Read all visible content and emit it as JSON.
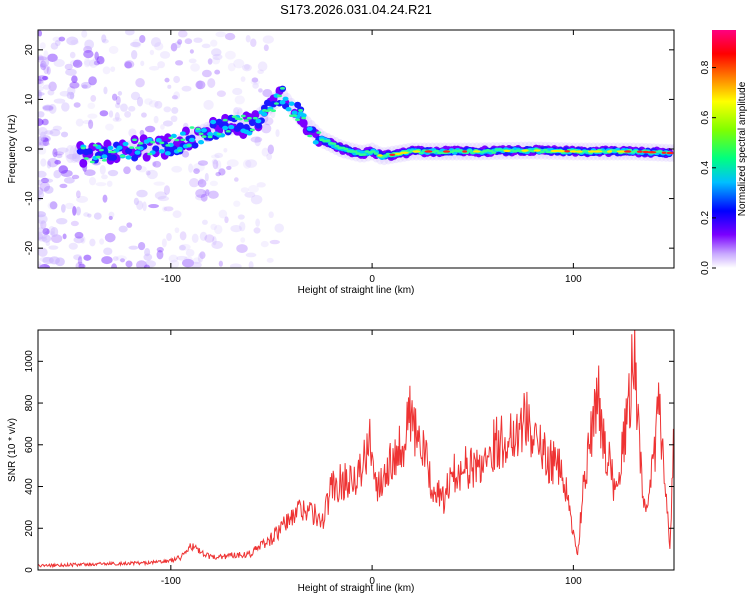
{
  "title": "S173.2026.031.04.24.R21",
  "chart_data": [
    {
      "type": "heatmap",
      "name": "spectrogram",
      "xlabel": "Height of straight line (km)",
      "ylabel": "Frequency (Hz)",
      "xlim": [
        -166,
        150
      ],
      "ylim": [
        -24,
        24
      ],
      "xticks": [
        -100,
        0,
        100
      ],
      "yticks": [
        -20,
        -10,
        0,
        10,
        20
      ],
      "colorbar": {
        "label": "Normalized spectral amplitude",
        "range": [
          0.0,
          0.95
        ],
        "ticks": [
          0.0,
          0.2,
          0.4,
          0.6,
          0.8
        ]
      },
      "ridge": {
        "description_points_x": [
          -140,
          -120,
          -100,
          -80,
          -60,
          -45,
          -35,
          -25,
          -15,
          -5,
          0,
          5,
          20,
          50,
          80,
          100,
          130,
          148
        ],
        "description_points_y": [
          -1,
          0,
          0.5,
          4,
          5,
          11,
          6,
          2,
          0,
          -1,
          -0.5,
          -1.5,
          -0.5,
          -0.5,
          -0.3,
          -0.5,
          -0.5,
          -0.8
        ]
      }
    },
    {
      "type": "line",
      "name": "snr",
      "xlabel": "Height of straight line (km)",
      "ylabel": "SNR (10 * v/v)",
      "xlim": [
        -166,
        150
      ],
      "ylim": [
        0,
        1150
      ],
      "xticks": [
        -100,
        0,
        100
      ],
      "yticks": [
        0,
        200,
        400,
        600,
        800,
        1000
      ],
      "color": "#ee3333",
      "series": [
        {
          "name": "SNR",
          "x": [
            -166,
            -150,
            -130,
            -110,
            -100,
            -95,
            -90,
            -85,
            -80,
            -70,
            -60,
            -55,
            -50,
            -45,
            -40,
            -35,
            -30,
            -25,
            -20,
            -15,
            -10,
            -5,
            -1,
            0,
            2,
            5,
            10,
            15,
            18,
            20,
            22,
            25,
            30,
            35,
            40,
            45,
            50,
            55,
            60,
            65,
            70,
            75,
            78,
            80,
            85,
            90,
            95,
            100,
            102,
            105,
            110,
            112,
            115,
            120,
            125,
            128,
            130,
            132,
            135,
            140,
            142,
            145,
            148,
            150
          ],
          "y": [
            20,
            25,
            30,
            35,
            45,
            60,
            120,
            80,
            60,
            70,
            80,
            120,
            150,
            200,
            250,
            300,
            280,
            220,
            400,
            420,
            450,
            480,
            600,
            620,
            400,
            450,
            550,
            600,
            750,
            700,
            650,
            580,
            400,
            330,
            450,
            500,
            480,
            520,
            600,
            620,
            650,
            720,
            700,
            650,
            550,
            520,
            450,
            180,
            60,
            400,
            700,
            850,
            650,
            400,
            600,
            800,
            1120,
            700,
            300,
            500,
            800,
            500,
            100,
            700
          ]
        }
      ]
    }
  ]
}
